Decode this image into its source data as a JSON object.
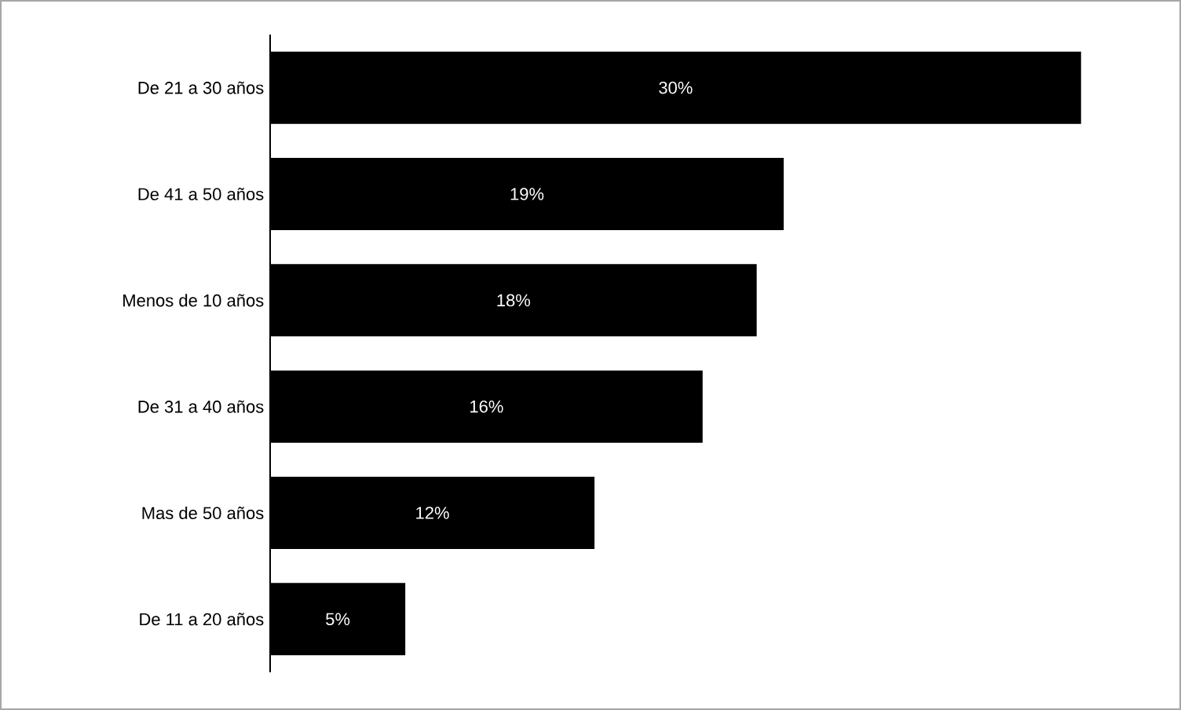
{
  "chart_data": {
    "type": "bar",
    "orientation": "horizontal",
    "categories": [
      "De 21 a 30 años",
      "De 41 a 50 años",
      "Menos de 10 años",
      "De 31 a 40 años",
      "Mas de 50 años",
      "De 11 a 20 años"
    ],
    "values": [
      30,
      19,
      18,
      16,
      12,
      5
    ],
    "value_labels": [
      "30%",
      "19%",
      "18%",
      "16%",
      "12%",
      "5%"
    ],
    "color": "#000000"
  }
}
